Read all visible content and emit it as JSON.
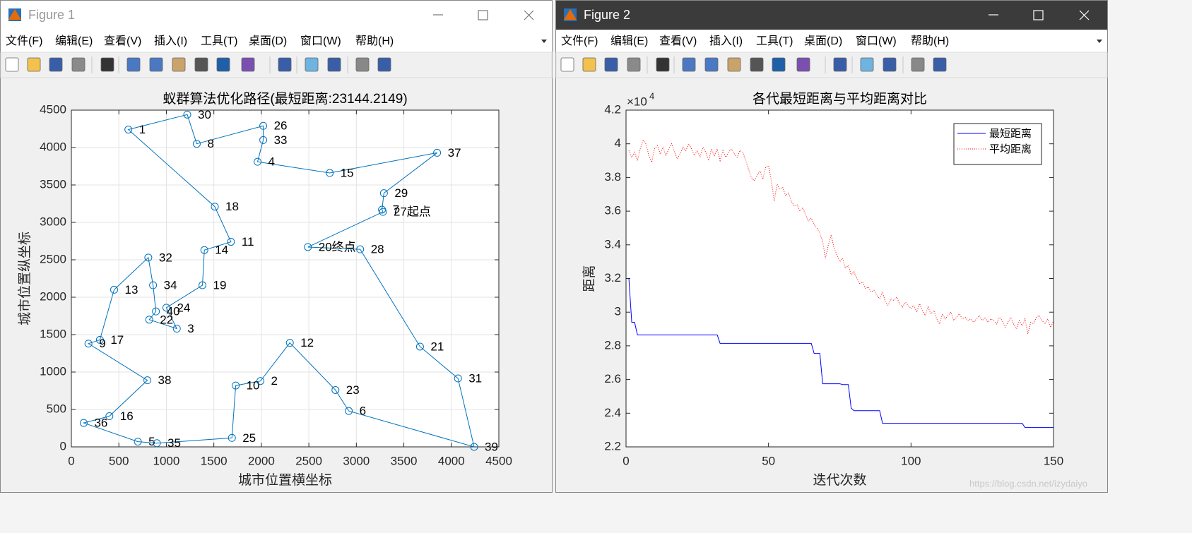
{
  "windows": [
    {
      "title": "Figure 1",
      "menu": [
        "文件(F)",
        "编辑(E)",
        "查看(V)",
        "插入(I)",
        "工具(T)",
        "桌面(D)",
        "窗口(W)",
        "帮助(H)"
      ]
    },
    {
      "title": "Figure 2",
      "menu": [
        "文件(F)",
        "编辑(E)",
        "查看(V)",
        "插入(I)",
        "工具(T)",
        "桌面(D)",
        "窗口(W)",
        "帮助(H)"
      ]
    }
  ],
  "watermark": "https://blog.csdn.net/izydaiyo",
  "chart_data": [
    {
      "type": "line",
      "title": "蚁群算法优化路径(最短距离:23144.2149)",
      "xlabel": "城市位置横坐标",
      "ylabel": "城市位置纵坐标",
      "marker": "circle",
      "closed": true,
      "color": "#0072bd",
      "labels": [
        "27起点",
        "7",
        "29",
        "37",
        "15",
        "4",
        "33",
        "26",
        "8",
        "30",
        "1",
        "18",
        "11",
        "14",
        "19",
        "24",
        "3",
        "22",
        "40",
        "34",
        "32",
        "13",
        "17",
        "9",
        "38",
        "16",
        "36",
        "5",
        "35",
        "25",
        "10",
        "2",
        "12",
        "23",
        "6",
        "39",
        "31",
        "21",
        "28",
        "20终点"
      ],
      "x": [
        3280,
        3270,
        3290,
        3850,
        2720,
        1960,
        2020,
        2020,
        1320,
        1220,
        600,
        1510,
        1680,
        1400,
        1380,
        1000,
        1110,
        820,
        890,
        860,
        810,
        450,
        300,
        180,
        800,
        400,
        130,
        700,
        900,
        1690,
        1730,
        1990,
        2300,
        2780,
        2920,
        4240,
        4070,
        3670,
        3040,
        2490
      ],
      "values": [
        3140,
        3170,
        3390,
        3930,
        3660,
        3810,
        4100,
        4290,
        4050,
        4440,
        4240,
        3210,
        2740,
        2630,
        2160,
        1860,
        1580,
        1700,
        1810,
        2160,
        2530,
        2100,
        1430,
        1380,
        890,
        410,
        320,
        70,
        50,
        120,
        820,
        880,
        1390,
        760,
        480,
        0,
        915,
        1340,
        2640,
        2670
      ],
      "xlim": [
        0,
        4500
      ],
      "ylim": [
        0,
        4500
      ],
      "xticks": [
        0,
        500,
        1000,
        1500,
        2000,
        2500,
        3000,
        3500,
        4000,
        4500
      ],
      "yticks": [
        0,
        500,
        1000,
        1500,
        2000,
        2500,
        3000,
        3500,
        4000,
        4500
      ],
      "grid": true
    },
    {
      "type": "line",
      "title": "各代最短距离与平均距离对比",
      "xlabel": "迭代次数",
      "ylabel": "距离",
      "y_scale_label": "×10",
      "y_scale_exponent": "4",
      "x": [
        1,
        2,
        3,
        4,
        5,
        6,
        7,
        8,
        9,
        10,
        11,
        12,
        13,
        14,
        15,
        16,
        17,
        18,
        19,
        20,
        21,
        22,
        23,
        24,
        25,
        26,
        27,
        28,
        29,
        30,
        31,
        32,
        33,
        34,
        35,
        36,
        37,
        38,
        39,
        40,
        41,
        42,
        43,
        44,
        45,
        46,
        47,
        48,
        49,
        50,
        51,
        52,
        53,
        54,
        55,
        56,
        57,
        58,
        59,
        60,
        61,
        62,
        63,
        64,
        65,
        66,
        67,
        68,
        69,
        70,
        71,
        72,
        73,
        74,
        75,
        76,
        77,
        78,
        79,
        80,
        81,
        82,
        83,
        84,
        85,
        86,
        87,
        88,
        89,
        90,
        91,
        92,
        93,
        94,
        95,
        96,
        97,
        98,
        99,
        100,
        101,
        102,
        103,
        104,
        105,
        106,
        107,
        108,
        109,
        110,
        111,
        112,
        113,
        114,
        115,
        116,
        117,
        118,
        119,
        120,
        121,
        122,
        123,
        124,
        125,
        126,
        127,
        128,
        129,
        130,
        131,
        132,
        133,
        134,
        135,
        136,
        137,
        138,
        139,
        140,
        141,
        142,
        143,
        144,
        145,
        146,
        147,
        148,
        149,
        150
      ],
      "series": [
        {
          "name": "最短距离",
          "color": "#0000ff",
          "style": "solid",
          "values": [
            3.2,
            2.94,
            2.94,
            2.865,
            2.865,
            2.865,
            2.865,
            2.865,
            2.865,
            2.865,
            2.865,
            2.865,
            2.865,
            2.865,
            2.865,
            2.865,
            2.865,
            2.865,
            2.865,
            2.865,
            2.865,
            2.865,
            2.865,
            2.865,
            2.865,
            2.865,
            2.865,
            2.865,
            2.865,
            2.865,
            2.865,
            2.865,
            2.815,
            2.815,
            2.815,
            2.815,
            2.815,
            2.815,
            2.815,
            2.815,
            2.815,
            2.815,
            2.815,
            2.815,
            2.815,
            2.815,
            2.815,
            2.815,
            2.815,
            2.815,
            2.815,
            2.815,
            2.815,
            2.815,
            2.815,
            2.815,
            2.815,
            2.815,
            2.815,
            2.815,
            2.815,
            2.815,
            2.815,
            2.815,
            2.815,
            2.755,
            2.755,
            2.755,
            2.575,
            2.575,
            2.575,
            2.575,
            2.575,
            2.575,
            2.575,
            2.57,
            2.57,
            2.57,
            2.43,
            2.415,
            2.415,
            2.415,
            2.415,
            2.415,
            2.415,
            2.415,
            2.415,
            2.415,
            2.415,
            2.34,
            2.34,
            2.34,
            2.34,
            2.34,
            2.34,
            2.34,
            2.34,
            2.34,
            2.34,
            2.34,
            2.34,
            2.34,
            2.34,
            2.34,
            2.34,
            2.34,
            2.34,
            2.34,
            2.34,
            2.34,
            2.34,
            2.34,
            2.34,
            2.34,
            2.34,
            2.34,
            2.34,
            2.34,
            2.34,
            2.34,
            2.34,
            2.34,
            2.34,
            2.34,
            2.34,
            2.34,
            2.34,
            2.34,
            2.34,
            2.34,
            2.34,
            2.34,
            2.34,
            2.34,
            2.34,
            2.34,
            2.34,
            2.34,
            2.34,
            2.315,
            2.315,
            2.315,
            2.315,
            2.315,
            2.315,
            2.315,
            2.315,
            2.315,
            2.315,
            2.315
          ]
        },
        {
          "name": "平均距离",
          "color": "#ff0000",
          "style": "dotted",
          "values": [
            3.96,
            3.92,
            3.95,
            3.9,
            3.97,
            4.02,
            4.0,
            3.93,
            3.89,
            3.97,
            3.99,
            3.94,
            3.98,
            3.93,
            3.97,
            4.0,
            3.95,
            3.91,
            3.94,
            3.98,
            3.96,
            4.0,
            3.97,
            3.93,
            3.96,
            3.92,
            3.98,
            3.95,
            3.9,
            3.97,
            3.93,
            3.97,
            3.9,
            3.96,
            3.92,
            3.95,
            3.97,
            3.94,
            3.92,
            3.96,
            3.95,
            3.9,
            3.85,
            3.8,
            3.78,
            3.81,
            3.84,
            3.79,
            3.86,
            3.87,
            3.78,
            3.66,
            3.76,
            3.73,
            3.74,
            3.69,
            3.71,
            3.66,
            3.63,
            3.64,
            3.6,
            3.62,
            3.58,
            3.54,
            3.56,
            3.52,
            3.5,
            3.47,
            3.42,
            3.32,
            3.4,
            3.46,
            3.38,
            3.34,
            3.3,
            3.32,
            3.26,
            3.28,
            3.22,
            3.24,
            3.2,
            3.17,
            3.18,
            3.14,
            3.15,
            3.12,
            3.13,
            3.1,
            3.08,
            3.12,
            3.06,
            3.04,
            3.08,
            3.07,
            3.09,
            3.05,
            3.03,
            3.06,
            3.04,
            3.02,
            3.04,
            3.0,
            3.05,
            3.01,
            2.98,
            3.03,
            2.99,
            3.01,
            2.96,
            2.93,
            2.99,
            2.96,
            2.98,
            3.0,
            2.95,
            2.97,
            2.99,
            2.96,
            2.97,
            2.95,
            2.96,
            2.94,
            2.96,
            2.98,
            2.95,
            2.97,
            2.94,
            2.96,
            2.95,
            2.93,
            2.97,
            2.95,
            2.91,
            2.94,
            2.97,
            2.93,
            2.9,
            2.95,
            2.92,
            2.96,
            2.87,
            2.94,
            2.93,
            2.97,
            2.98,
            2.95,
            2.93,
            2.96,
            2.91,
            2.95
          ]
        }
      ],
      "xlim": [
        0,
        150
      ],
      "ylim": [
        2.2,
        4.2
      ],
      "xticks": [
        0,
        50,
        100,
        150
      ],
      "yticks": [
        2.2,
        2.4,
        2.6,
        2.8,
        3,
        3.2,
        3.4,
        3.6,
        3.8,
        4,
        4.2
      ],
      "grid": false,
      "legend": "top-right"
    }
  ]
}
